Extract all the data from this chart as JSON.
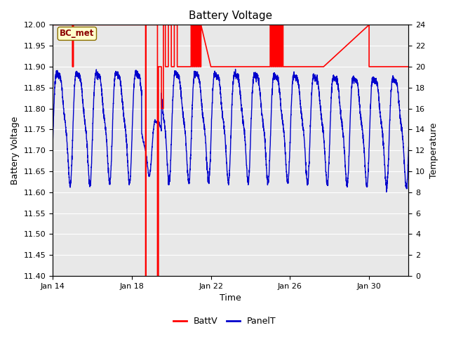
{
  "title": "Battery Voltage",
  "xlabel": "Time",
  "ylabel_left": "Battery Voltage",
  "ylabel_right": "Temperature",
  "ylim_left": [
    11.4,
    12.0
  ],
  "ylim_right": [
    0,
    24
  ],
  "yticks_left": [
    11.4,
    11.45,
    11.5,
    11.55,
    11.6,
    11.65,
    11.7,
    11.75,
    11.8,
    11.85,
    11.9,
    11.95,
    12.0
  ],
  "yticks_right": [
    0,
    2,
    4,
    6,
    8,
    10,
    12,
    14,
    16,
    18,
    20,
    22,
    24
  ],
  "background_color": "#e8e8e8",
  "annotation_text": "BC_met",
  "batt_color": "#ff0000",
  "panel_color": "#0000cc",
  "legend_batt": "BattV",
  "legend_panel": "PanelT",
  "fig_bg": "#ffffff"
}
